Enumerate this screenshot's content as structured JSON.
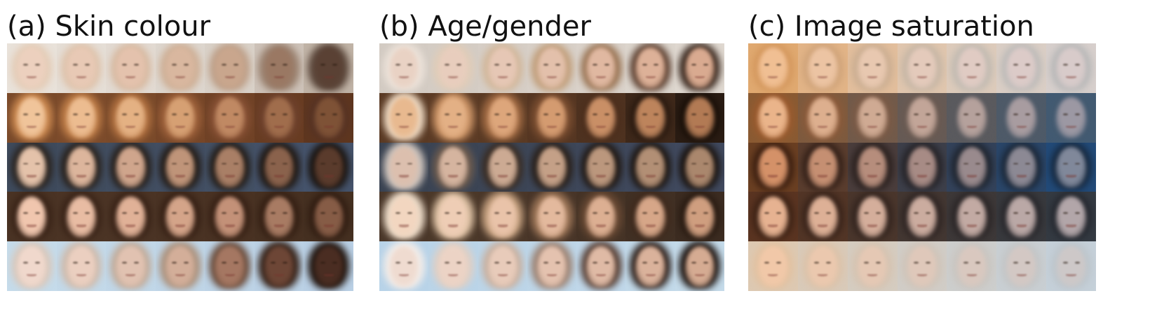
{
  "panels": [
    {
      "key": "skin",
      "title": "(a) Skin colour",
      "rows": [
        {
          "bg": [
            "#e9e2da",
            "#e5ded6",
            "#e2dad2",
            "#ddd6ce",
            "#d9d1c8",
            "#cdc2b8",
            "#c0b3a6"
          ],
          "skin": [
            "#ecd0be",
            "#e8c9b5",
            "#e4c2ad",
            "#d9b79f",
            "#c9a68d",
            "#9a7863",
            "#5a4134"
          ],
          "hair": [
            "#e4cdb8",
            "#dfc4ad",
            "#d8bba3",
            "#cfb198",
            "#bfa18a",
            "#9b8270",
            "#5e4a3e"
          ]
        },
        {
          "bg": [
            "#7a4a2a",
            "#7c4b2b",
            "#7a4a2a",
            "#764628",
            "#704226",
            "#683c22",
            "#5e361f"
          ],
          "skin": [
            "#f0c49a",
            "#ecbc90",
            "#e4b183",
            "#d6a073",
            "#c08963",
            "#a06d4c",
            "#7e5236"
          ],
          "hair": [
            "#c9874f",
            "#bd7c47",
            "#b07040",
            "#9c603a",
            "#865034",
            "#6e412c",
            "#573324"
          ]
        },
        {
          "bg": [
            "#3e4a5c",
            "#404c5e",
            "#414d60",
            "#424e62",
            "#435064",
            "#445168",
            "#45536b"
          ],
          "skin": [
            "#e4c2aa",
            "#dcb59c",
            "#cfa58c",
            "#bf9479",
            "#a97f66",
            "#8a624c",
            "#5a3b2c"
          ],
          "hair": [
            "#2b241f",
            "#29221d",
            "#27201b",
            "#251e19",
            "#231c17",
            "#211a15",
            "#1c1612"
          ]
        },
        {
          "bg": [
            "#4a3324",
            "#4b3425",
            "#4b3425",
            "#4a3324",
            "#493223",
            "#473122",
            "#453021"
          ],
          "skin": [
            "#f0c6ae",
            "#e8bca3",
            "#e0b197",
            "#d4a489",
            "#c39178",
            "#a87b63",
            "#865c46"
          ],
          "hair": [
            "#3a2418",
            "#3a2418",
            "#392317",
            "#382216",
            "#372115",
            "#352014",
            "#321e13"
          ]
        },
        {
          "bg": [
            "#c5dbea",
            "#c3d9e9",
            "#c1d7e8",
            "#bfd5e7",
            "#bdd3e6",
            "#bbd1e5",
            "#b9cfe4"
          ],
          "skin": [
            "#f0d8cc",
            "#ebcfc0",
            "#e1c2b1",
            "#d3ae99",
            "#a57762",
            "#6d4636",
            "#4a2d22"
          ],
          "hair": [
            "#d9c9bd",
            "#cfbcae",
            "#c2ad9c",
            "#ad9480",
            "#6d4f3e",
            "#3a261c",
            "#241812"
          ]
        }
      ]
    },
    {
      "key": "age",
      "title": "(b) Age/gender",
      "rows": [
        {
          "bg": [
            "#d3cbc3",
            "#d4ccc4",
            "#d6cec6",
            "#d8d0c8",
            "#dad2ca",
            "#dcd5cd",
            "#dfd8d0"
          ],
          "skin": [
            "#e9d2c4",
            "#e8cdbd",
            "#e6c7b5",
            "#e3c0ab",
            "#e0b8a1",
            "#ddb198",
            "#d9aa90"
          ],
          "hair": [
            "#ece2d9",
            "#e0cdb9",
            "#d2b89c",
            "#c2a07d",
            "#9b7656",
            "#5e4131",
            "#3b291f"
          ]
        },
        {
          "bg": [
            "#5a3a24",
            "#5c3b25",
            "#5a3a24",
            "#553622",
            "#4e3220",
            "#3e281a",
            "#2a1c13"
          ],
          "skin": [
            "#e8b98f",
            "#e3b085",
            "#dda67b",
            "#d49b70",
            "#c98f66",
            "#bd845c",
            "#b27a54"
          ],
          "hair": [
            "#ecd7c0",
            "#c99265",
            "#a06a43",
            "#7a4d30",
            "#4d2f1d",
            "#2a1a10",
            "#1a1009"
          ]
        },
        {
          "bg": [
            "#3a4352",
            "#3b4454",
            "#3c4556",
            "#3d4658",
            "#3e475a",
            "#3f485c",
            "#40495e"
          ],
          "skin": [
            "#dcbfae",
            "#d5b49f",
            "#ccaa93",
            "#c4a087",
            "#bb977d",
            "#b28f75",
            "#aa876d"
          ],
          "hair": [
            "#ccc2bb",
            "#6d5b4e",
            "#3a2d24",
            "#2a211b",
            "#221a15",
            "#1e1712",
            "#1b1511"
          ]
        },
        {
          "bg": [
            "#4a3729",
            "#4b3829",
            "#4a3729",
            "#483528",
            "#453326",
            "#413024",
            "#3c2c21"
          ],
          "skin": [
            "#f2d6c0",
            "#eecdb5",
            "#e9c3a9",
            "#e3b99d",
            "#dcaf92",
            "#d6a688",
            "#cf9e7f"
          ],
          "hair": [
            "#ead9c6",
            "#dcc0a3",
            "#c4a07f",
            "#9c7557",
            "#6a4a34",
            "#3f2a1d",
            "#2a1c13"
          ]
        },
        {
          "bg": [
            "#b8d3e8",
            "#bad4e8",
            "#bcd5e8",
            "#bed6e8",
            "#c0d7e9",
            "#c2d9e9",
            "#c4dae9"
          ],
          "skin": [
            "#efdbd0",
            "#ecd3c5",
            "#e8cbba",
            "#e4c2af",
            "#dfbaa5",
            "#dab29b",
            "#d5ab92"
          ],
          "hair": [
            "#f2ece8",
            "#e0d0c5",
            "#c9b2a2",
            "#9e8576",
            "#5a4237",
            "#2e201a",
            "#1e1511"
          ]
        }
      ]
    },
    {
      "key": "saturation",
      "title": "(c) Image saturation",
      "rows": [
        {
          "bg": [
            "#e0a970",
            "#e2b487",
            "#e2be9c",
            "#e0c6ae",
            "#ddcbbb",
            "#dacec5",
            "#d7cfcc"
          ],
          "skin": [
            "#f0bf93",
            "#ecc4a3",
            "#e8c8b0",
            "#e4cabb",
            "#e0cbc3",
            "#dccbc8",
            "#d8cbca"
          ],
          "hair": [
            "#d4985e",
            "#d0a47a",
            "#ccaf93",
            "#c7b7a6",
            "#c2bbb2",
            "#bdbbb9",
            "#b8b8b8"
          ]
        },
        {
          "bg": [
            "#8a5a32",
            "#7e5a3e",
            "#725a4a",
            "#665a55",
            "#5a5a5e",
            "#4e5a68",
            "#425a72"
          ],
          "skin": [
            "#eab48a",
            "#ddaf8e",
            "#cfaa93",
            "#c2a598",
            "#b5a19c",
            "#a89ca0",
            "#9c98a3"
          ],
          "hair": [
            "#9a5a2e",
            "#8a5a3a",
            "#7a5a46",
            "#6a5a52",
            "#5a5a5e",
            "#4e5a68",
            "#445a70"
          ]
        },
        {
          "bg": [
            "#6a3f22",
            "#5a3d2e",
            "#4a3d3c",
            "#3d3f4a",
            "#33425a",
            "#2a4669",
            "#224a78"
          ],
          "skin": [
            "#d49168",
            "#c58f72",
            "#b68d7c",
            "#a78b85",
            "#998a8d",
            "#8c8994",
            "#80889a"
          ],
          "hair": [
            "#3a1e10",
            "#332018",
            "#2c2220",
            "#262428",
            "#202630",
            "#1c2838",
            "#182a40"
          ]
        },
        {
          "bg": [
            "#5a3421",
            "#523526",
            "#4a362c",
            "#433732",
            "#3d3838",
            "#38393d",
            "#343a42"
          ],
          "skin": [
            "#e6b291",
            "#ddb096",
            "#d4ae9b",
            "#cbac9f",
            "#c2aaa3",
            "#baa8a6",
            "#b2a6a9"
          ],
          "hair": [
            "#3c2215",
            "#38231a",
            "#34251f",
            "#302624",
            "#2c2728",
            "#29282c",
            "#262930"
          ]
        },
        {
          "bg": [
            "#ddc9b2",
            "#d9cab9",
            "#d5ccc0",
            "#d1cdc7",
            "#cdcecd",
            "#c9cfd3",
            "#c5d0d9"
          ],
          "skin": [
            "#f1c8a8",
            "#ebc8ae",
            "#e5c8b4",
            "#dfc8ba",
            "#d9c8bf",
            "#d3c8c4",
            "#cdc8c8"
          ],
          "hair": [
            "#e2c2a2",
            "#dcc3aa",
            "#d6c4b2",
            "#d0c5ba",
            "#cac6c1",
            "#c4c6c7",
            "#bec6cc"
          ]
        }
      ]
    }
  ]
}
